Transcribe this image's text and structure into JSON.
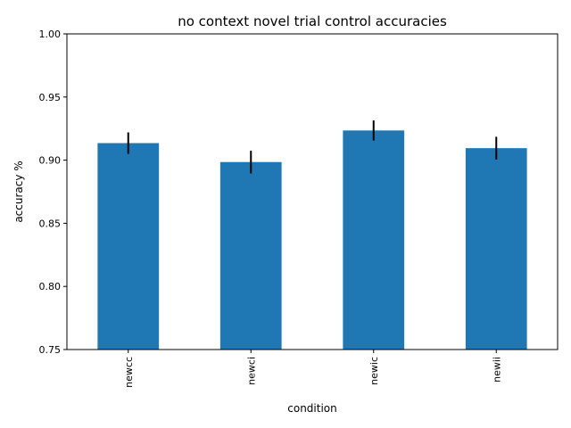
{
  "chart_data": {
    "type": "bar",
    "title": "no context novel trial control accuracies",
    "xlabel": "condition",
    "ylabel": "accuracy %",
    "categories": [
      "newcc",
      "newci",
      "newic",
      "newii"
    ],
    "values": [
      0.9135,
      0.8985,
      0.9235,
      0.9095
    ],
    "errors": [
      0.0085,
      0.009,
      0.008,
      0.009
    ],
    "ylim": [
      0.75,
      1.0
    ],
    "yticks": [
      "0.75",
      "0.80",
      "0.85",
      "0.90",
      "0.95",
      "1.00"
    ],
    "bar_color": "#1f77b4",
    "error_color": "#000000",
    "grid": false,
    "legend": "none"
  }
}
